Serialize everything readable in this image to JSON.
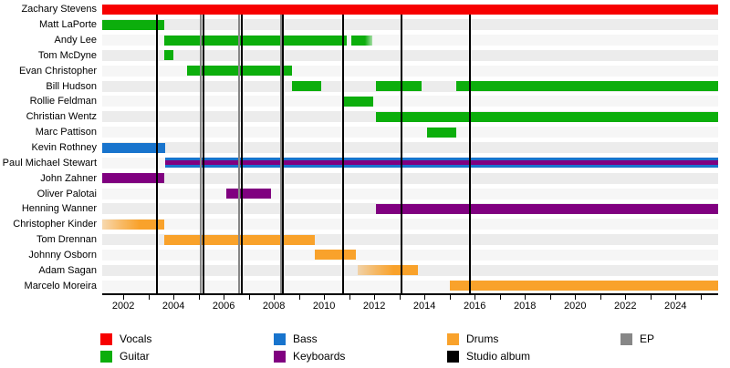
{
  "chart_data": {
    "type": "timeline",
    "description": "Band members timeline (gantt-style) with instrument color bars and release lines",
    "x_domain": [
      2001.16,
      2025.7
    ],
    "x_tick_years_labeled": [
      2002,
      2004,
      2006,
      2008,
      2010,
      2012,
      2014,
      2016,
      2018,
      2020,
      2022,
      2024
    ],
    "x_minor_tick_years": [
      2002,
      2003,
      2004,
      2005,
      2006,
      2007,
      2008,
      2009,
      2010,
      2011,
      2012,
      2013,
      2014,
      2015,
      2016,
      2017,
      2018,
      2019,
      2020,
      2021,
      2022,
      2023,
      2024,
      2025
    ],
    "grid": "row-stripes",
    "colors": {
      "vocals": "#f70000",
      "guitar": "#0cae0c",
      "bass": "#1874cd",
      "keyboards": "#800080",
      "drums": "#f9a22b",
      "studio_album": "#000000",
      "ep": "#878787",
      "stripe_dark": "#ececec",
      "stripe_light": "#f6f6f6"
    },
    "members": [
      {
        "name": "Zachary Stevens",
        "roles": [
          "vocals"
        ],
        "spans": [
          {
            "start": 2001.16,
            "end": 2025.7
          }
        ]
      },
      {
        "name": "Matt LaPorte",
        "roles": [
          "guitar"
        ],
        "spans": [
          {
            "start": 2001.16,
            "end": 2003.64
          }
        ]
      },
      {
        "name": "Andy Lee",
        "roles": [
          "guitar"
        ],
        "spans": [
          {
            "start": 2003.64,
            "end": 2010.91
          },
          {
            "start": 2011.09,
            "end": 2011.93,
            "fade": "right"
          }
        ]
      },
      {
        "name": "Tom McDyne",
        "roles": [
          "guitar"
        ],
        "spans": [
          {
            "start": 2003.64,
            "end": 2004.0
          }
        ]
      },
      {
        "name": "Evan Christopher",
        "roles": [
          "guitar"
        ],
        "spans": [
          {
            "start": 2004.55,
            "end": 2008.73
          }
        ]
      },
      {
        "name": "Bill Hudson",
        "roles": [
          "guitar"
        ],
        "spans": [
          {
            "start": 2008.73,
            "end": 2009.89
          },
          {
            "start": 2012.07,
            "end": 2013.89
          },
          {
            "start": 2015.27,
            "end": 2025.7
          }
        ]
      },
      {
        "name": "Rollie Feldman",
        "roles": [
          "guitar"
        ],
        "spans": [
          {
            "start": 2010.78,
            "end": 2011.96
          }
        ]
      },
      {
        "name": "Christian Wentz",
        "roles": [
          "guitar"
        ],
        "spans": [
          {
            "start": 2012.07,
            "end": 2025.7
          }
        ]
      },
      {
        "name": "Marc Pattison",
        "roles": [
          "guitar"
        ],
        "spans": [
          {
            "start": 2014.11,
            "end": 2015.27
          }
        ]
      },
      {
        "name": "Kevin Rothney",
        "roles": [
          "bass"
        ],
        "spans": [
          {
            "start": 2001.16,
            "end": 2003.67
          }
        ]
      },
      {
        "name": "Paul Michael Stewart",
        "roles": [
          "bass",
          "keyboards"
        ],
        "spans": [
          {
            "start": 2003.67,
            "end": 2025.7
          }
        ]
      },
      {
        "name": "John Zahner",
        "roles": [
          "keyboards"
        ],
        "spans": [
          {
            "start": 2001.16,
            "end": 2003.64
          }
        ]
      },
      {
        "name": "Oliver Palotai",
        "roles": [
          "keyboards"
        ],
        "spans": [
          {
            "start": 2006.11,
            "end": 2007.89
          }
        ]
      },
      {
        "name": "Henning Wanner",
        "roles": [
          "keyboards"
        ],
        "spans": [
          {
            "start": 2012.07,
            "end": 2025.7
          }
        ]
      },
      {
        "name": "Christopher Kinder",
        "roles": [
          "drums"
        ],
        "spans": [
          {
            "start": 2001.16,
            "end": 2003.64,
            "fade": "left"
          }
        ]
      },
      {
        "name": "Tom Drennan",
        "roles": [
          "drums"
        ],
        "spans": [
          {
            "start": 2003.64,
            "end": 2009.64
          }
        ]
      },
      {
        "name": "Johnny Osborn",
        "roles": [
          "drums"
        ],
        "spans": [
          {
            "start": 2009.64,
            "end": 2011.27
          }
        ]
      },
      {
        "name": "Adam Sagan",
        "roles": [
          "drums"
        ],
        "spans": [
          {
            "start": 2011.35,
            "end": 2013.75,
            "fade": "left"
          }
        ]
      },
      {
        "name": "Marcelo Moreira",
        "roles": [
          "drums"
        ],
        "spans": [
          {
            "start": 2015.02,
            "end": 2025.7
          }
        ]
      }
    ],
    "releases": {
      "studio_albums": [
        2003.35,
        2005.18,
        2006.71,
        2008.36,
        2010.76,
        2013.09,
        2015.82
      ],
      "eps": [
        2005.1,
        2006.63,
        2008.28
      ]
    },
    "legend": {
      "items": [
        {
          "label": "Vocals",
          "color_key": "vocals",
          "column": 0,
          "row": 0
        },
        {
          "label": "Guitar",
          "color_key": "guitar",
          "column": 0,
          "row": 1
        },
        {
          "label": "Bass",
          "color_key": "bass",
          "column": 1,
          "row": 0
        },
        {
          "label": "Keyboards",
          "color_key": "keyboards",
          "column": 1,
          "row": 1
        },
        {
          "label": "Drums",
          "color_key": "drums",
          "column": 2,
          "row": 0
        },
        {
          "label": "Studio album",
          "color_key": "studio_album",
          "column": 2,
          "row": 1
        },
        {
          "label": "EP",
          "color_key": "ep",
          "column": 3,
          "row": 0
        }
      ]
    }
  }
}
